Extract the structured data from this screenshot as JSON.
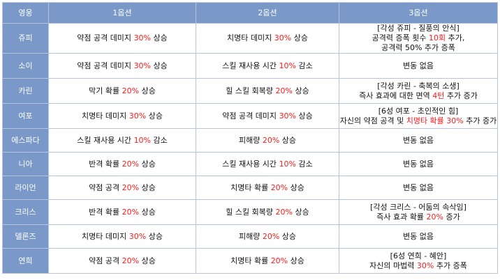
{
  "headers": [
    "영웅",
    "1옵션",
    "2옵션",
    "3옵션"
  ],
  "colors": {
    "header_bg": "#7a98c8",
    "highlight": "#ff1a1a",
    "border": "#b7c3dc"
  },
  "rows": [
    {
      "hero": "쥬피",
      "opt1": [
        {
          "t": "약점 공격 데미지 "
        },
        {
          "t": "30%",
          "h": true
        },
        {
          "t": " 상승"
        }
      ],
      "opt2": [
        {
          "t": "치명타 데미지 "
        },
        {
          "t": "30%",
          "h": true
        },
        {
          "t": " 상승"
        }
      ],
      "opt3": [
        [
          {
            "t": "[각성 쥬피 - 질풍의 안식]"
          }
        ],
        [
          {
            "t": "공격력 증폭 횟수 "
          },
          {
            "t": "10회",
            "h": true
          },
          {
            "t": " 추가,"
          }
        ],
        [
          {
            "t": "공격력 50% 추가 증폭"
          }
        ]
      ]
    },
    {
      "hero": "소이",
      "opt1": [
        {
          "t": "약점 공격 데미지 "
        },
        {
          "t": "30%",
          "h": true
        },
        {
          "t": " 상승"
        }
      ],
      "opt2": [
        {
          "t": "스킬 재사용 시간 "
        },
        {
          "t": "10%",
          "h": true
        },
        {
          "t": " 감소"
        }
      ],
      "opt3": [
        [
          {
            "t": "변동 없음"
          }
        ]
      ]
    },
    {
      "hero": "카린",
      "opt1": [
        {
          "t": "막기 확률 "
        },
        {
          "t": "20%",
          "h": true
        },
        {
          "t": " 상승"
        }
      ],
      "opt2": [
        {
          "t": "힐 스킬 회복량 "
        },
        {
          "t": "20%",
          "h": true
        },
        {
          "t": " 상승"
        }
      ],
      "opt3": [
        [
          {
            "t": "[각성 카린 - 축복의 소생]"
          }
        ],
        [
          {
            "t": "즉사 효과에 대한 면역 "
          },
          {
            "t": "4턴",
            "h": true
          },
          {
            "t": " 추가 증가"
          }
        ]
      ]
    },
    {
      "hero": "여포",
      "opt1": [
        {
          "t": "치명타 데미지 "
        },
        {
          "t": "30%",
          "h": true
        },
        {
          "t": " 상승"
        }
      ],
      "opt2": [
        {
          "t": "약점 공격 데미지 "
        },
        {
          "t": "30%",
          "h": true
        },
        {
          "t": " 상승"
        }
      ],
      "opt3": [
        [
          {
            "t": "[6성 여포 - 초인적인 힘]"
          }
        ],
        [
          {
            "t": "자신의 약점 공격 및 "
          },
          {
            "t": "치명타 확률 30%",
            "h": true
          },
          {
            "t": " 추가 증가"
          }
        ]
      ]
    },
    {
      "hero": "에스파다",
      "opt1": [
        {
          "t": "스킬 재사용 시간 "
        },
        {
          "t": "10%",
          "h": true
        },
        {
          "t": " 감소"
        }
      ],
      "opt2": [
        {
          "t": "피해량 "
        },
        {
          "t": "20%",
          "h": true
        },
        {
          "t": " 상승"
        }
      ],
      "opt3": [
        [
          {
            "t": "변동 없음"
          }
        ]
      ]
    },
    {
      "hero": "니아",
      "opt1": [
        {
          "t": "반격 확률 "
        },
        {
          "t": "20%",
          "h": true
        },
        {
          "t": " 상승"
        }
      ],
      "opt2": [
        {
          "t": "스킬 재사용 시간 "
        },
        {
          "t": "10%",
          "h": true
        },
        {
          "t": " 감소"
        }
      ],
      "opt3": [
        [
          {
            "t": "변동 없음"
          }
        ]
      ]
    },
    {
      "hero": "라이언",
      "opt1": [
        {
          "t": "약점 공격 "
        },
        {
          "t": "20%",
          "h": true
        },
        {
          "t": " 상승"
        }
      ],
      "opt2": [
        {
          "t": "치명타 확률 "
        },
        {
          "t": "20%",
          "h": true
        },
        {
          "t": " 상승"
        }
      ],
      "opt3": [
        [
          {
            "t": "변동 없음"
          }
        ]
      ]
    },
    {
      "hero": "크리스",
      "opt1": [
        {
          "t": "반격 확률 "
        },
        {
          "t": "20%",
          "h": true
        },
        {
          "t": " 상승"
        }
      ],
      "opt2": [
        {
          "t": "힐 스킬 회복량 "
        },
        {
          "t": "20%",
          "h": true
        },
        {
          "t": " 상승"
        }
      ],
      "opt3": [
        [
          {
            "t": "[각성 크리스 - 어둠의 속삭임]"
          }
        ],
        [
          {
            "t": "즉사 효과 확률 "
          },
          {
            "t": "20%",
            "h": true
          },
          {
            "t": " 증가"
          }
        ]
      ]
    },
    {
      "hero": "델론즈",
      "opt1": [
        {
          "t": "치명타 데미지 "
        },
        {
          "t": "30%",
          "h": true
        },
        {
          "t": " 상승"
        }
      ],
      "opt2": [
        {
          "t": "피해량 "
        },
        {
          "t": "20%",
          "h": true
        },
        {
          "t": " 상승"
        }
      ],
      "opt3": [
        [
          {
            "t": "변동 없음"
          }
        ]
      ]
    },
    {
      "hero": "연희",
      "opt1": [
        {
          "t": "약점 공격 "
        },
        {
          "t": "20%",
          "h": true
        },
        {
          "t": " 상승"
        }
      ],
      "opt2": [
        {
          "t": "치명타 확률 "
        },
        {
          "t": "20%",
          "h": true
        },
        {
          "t": " 상승"
        }
      ],
      "opt3": [
        [
          {
            "t": "[6성 연희 - 혜안]"
          }
        ],
        [
          {
            "t": "자신의 마법력 "
          },
          {
            "t": "30%",
            "h": true
          },
          {
            "t": " 추가 증폭"
          }
        ]
      ]
    }
  ]
}
